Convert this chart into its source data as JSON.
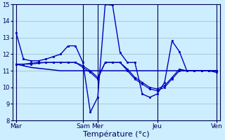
{
  "xlabel": "Température (°c)",
  "background_color": "#cceeff",
  "line_color": "#0000bb",
  "grid_color": "#99bbcc",
  "ylim": [
    8,
    15
  ],
  "yticks": [
    8,
    9,
    10,
    11,
    12,
    13,
    14,
    15
  ],
  "day_labels": [
    "Mar",
    "Sam",
    "Mer",
    "Jeu",
    "Ven"
  ],
  "day_x": [
    0,
    9,
    11,
    19,
    27
  ],
  "num_points": 28,
  "series_main": [
    13.3,
    11.7,
    11.6,
    11.6,
    11.7,
    11.85,
    12.0,
    12.5,
    12.5,
    11.5,
    8.5,
    9.4,
    15.0,
    14.95,
    12.1,
    11.5,
    11.5,
    9.6,
    9.4,
    9.6,
    10.3,
    12.8,
    12.15,
    11.0,
    11.0,
    11.0,
    11.0,
    10.9
  ],
  "series_a": [
    11.4,
    11.4,
    11.4,
    11.45,
    11.5,
    11.5,
    11.5,
    11.5,
    11.5,
    11.2,
    10.9,
    10.5,
    11.5,
    11.5,
    11.5,
    11.0,
    10.5,
    10.2,
    9.9,
    9.8,
    10.0,
    10.5,
    11.0,
    11.0,
    11.0,
    11.0,
    11.0,
    11.0
  ],
  "series_b": [
    11.4,
    11.4,
    11.45,
    11.5,
    11.5,
    11.5,
    11.5,
    11.5,
    11.5,
    11.3,
    11.0,
    10.6,
    11.5,
    11.5,
    11.5,
    11.1,
    10.6,
    10.3,
    10.0,
    9.9,
    10.1,
    10.6,
    11.1,
    11.0,
    11.0,
    11.0,
    11.0,
    11.0
  ],
  "series_flat": [
    11.4,
    11.3,
    11.2,
    11.15,
    11.1,
    11.05,
    11.0,
    11.0,
    11.0,
    11.0,
    11.0,
    11.0,
    11.0,
    11.0,
    11.0,
    11.0,
    11.0,
    11.0,
    11.0,
    11.0,
    11.0,
    11.0,
    11.0,
    11.0,
    11.0,
    11.0,
    11.0,
    11.0
  ]
}
